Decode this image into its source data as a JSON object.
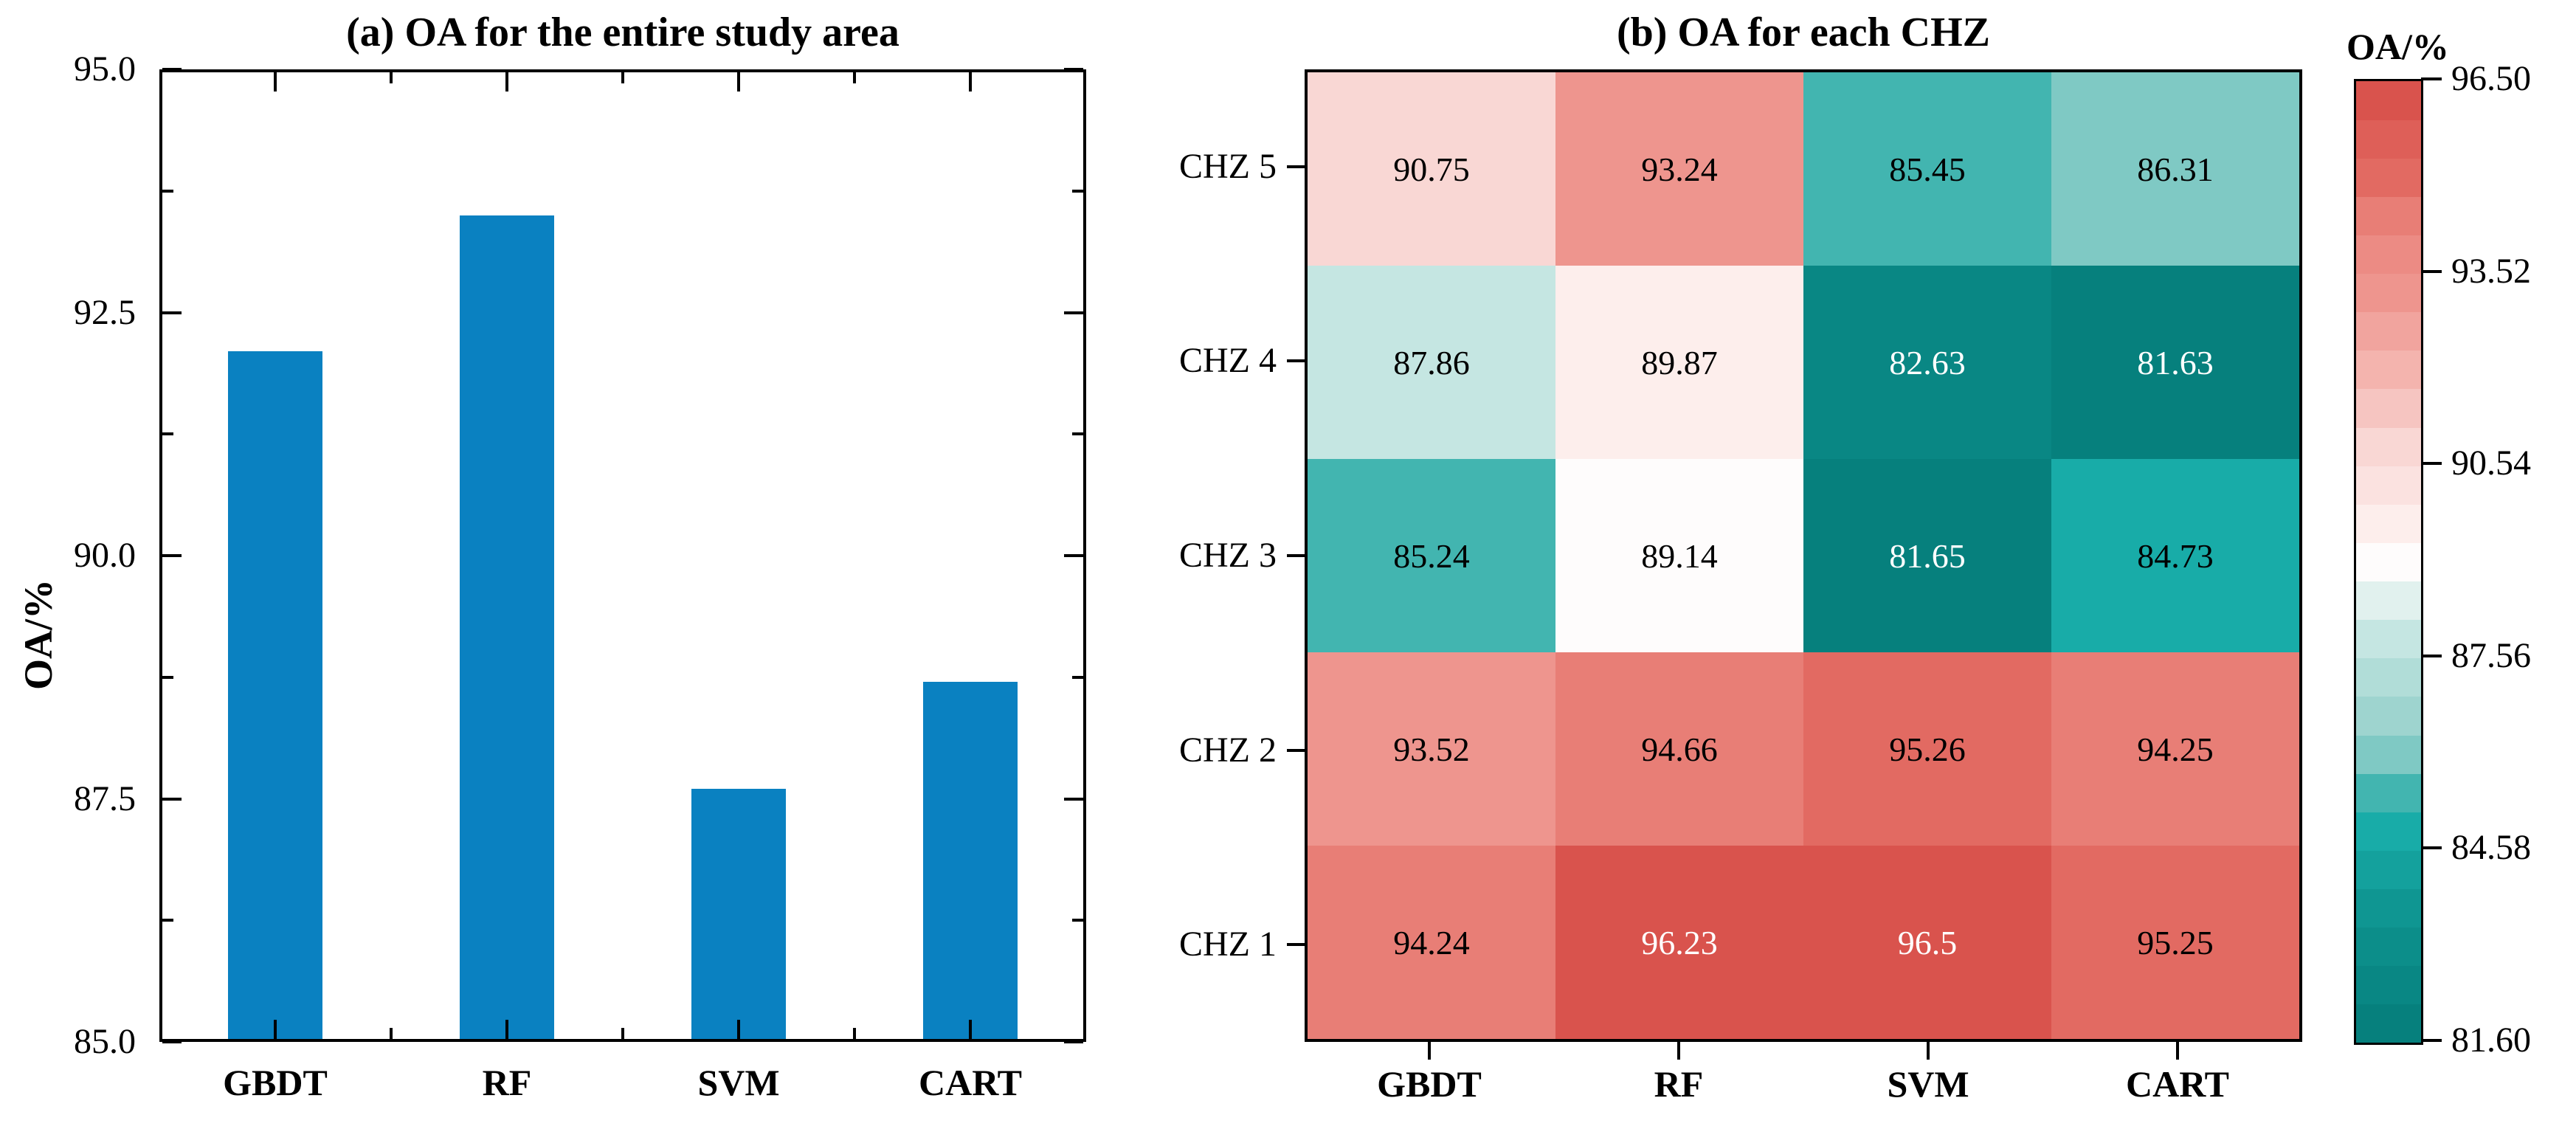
{
  "chart_data": [
    {
      "id": "overall_oa_bar",
      "type": "bar",
      "title": "(a) OA for the entire study area",
      "ylabel": "OA/%",
      "xlabel": "",
      "categories": [
        "GBDT",
        "RF",
        "SVM",
        "CART"
      ],
      "values": [
        92.1,
        93.5,
        87.6,
        88.7
      ],
      "ylim": [
        85.0,
        95.0
      ],
      "ytick_labels": [
        "85.0",
        "87.5",
        "90.0",
        "92.5",
        "95.0"
      ],
      "ytick_values": [
        85.0,
        87.5,
        90.0,
        92.5,
        95.0
      ],
      "ytick_minor_values": [
        86.25,
        88.75,
        91.25,
        93.75
      ],
      "bar_color": "#0a81c1",
      "grid": false,
      "legend": false,
      "frame": "full-box-inward-ticks"
    },
    {
      "id": "chz_oa_heatmap",
      "type": "heatmap",
      "title": "(b) OA for each CHZ",
      "columns": [
        "GBDT",
        "RF",
        "SVM",
        "CART"
      ],
      "rows": [
        "CHZ 5",
        "CHZ 4",
        "CHZ 3",
        "CHZ 2",
        "CHZ 1"
      ],
      "values": [
        [
          90.75,
          93.24,
          85.45,
          86.31
        ],
        [
          87.86,
          89.87,
          82.63,
          81.63
        ],
        [
          85.24,
          89.14,
          81.65,
          84.73
        ],
        [
          93.52,
          94.66,
          95.26,
          94.25
        ],
        [
          94.24,
          96.23,
          96.5,
          95.25
        ]
      ],
      "cell_labels": [
        [
          "90.75",
          "93.24",
          "85.45",
          "86.31"
        ],
        [
          "87.86",
          "89.87",
          "82.63",
          "81.63"
        ],
        [
          "85.24",
          "89.14",
          "81.65",
          "84.73"
        ],
        [
          "93.52",
          "94.66",
          "95.26",
          "94.25"
        ],
        [
          "94.24",
          "96.23",
          "96.5",
          "95.25"
        ]
      ],
      "cell_text_dark": "#000000",
      "cell_text_light": "#ffffff",
      "light_text_below_value": 83.5,
      "light_text_above_value": 95.5,
      "colorbar": {
        "label": "OA/%",
        "tick_labels": [
          "96.50",
          "93.52",
          "90.54",
          "87.56",
          "84.58",
          "81.60"
        ],
        "tick_values": [
          96.5,
          93.52,
          90.54,
          87.56,
          84.58,
          81.6
        ],
        "vmin": 81.6,
        "vmax": 96.5,
        "steps": 25,
        "colormap_anchors": [
          [
            81.6,
            "#057d7a"
          ],
          [
            83.5,
            "#0e938f"
          ],
          [
            84.88,
            "#18aca8"
          ],
          [
            85.47,
            "#42b5b0"
          ],
          [
            86.07,
            "#7fc9c4"
          ],
          [
            86.67,
            "#9ed4cf"
          ],
          [
            87.86,
            "#c5e6e2"
          ],
          [
            88.46,
            "#e1f1ee"
          ],
          [
            89.05,
            "#fefcfc"
          ],
          [
            89.64,
            "#fdeeec"
          ],
          [
            90.83,
            "#f9d7d4"
          ],
          [
            92.02,
            "#f4b4ae"
          ],
          [
            93.21,
            "#ee958e"
          ],
          [
            93.81,
            "#ec8b84"
          ],
          [
            94.4,
            "#e87e76"
          ],
          [
            95.0,
            "#e26a62"
          ],
          [
            95.6,
            "#de5f58"
          ],
          [
            96.19,
            "#d9534d"
          ],
          [
            96.5,
            "#d74f48"
          ]
        ]
      }
    }
  ]
}
